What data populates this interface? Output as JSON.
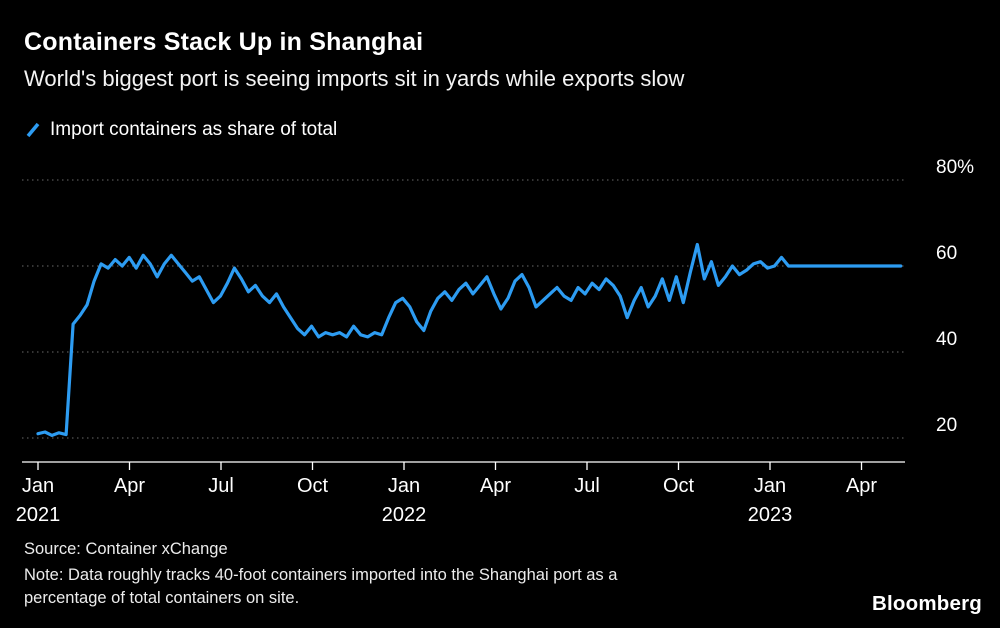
{
  "chart_data": {
    "type": "line",
    "title": "Containers Stack Up in Shanghai",
    "subtitle": "World's biggest port is seeing imports sit in yards while exports slow",
    "legend": "Import containers as share of total",
    "unit": "%",
    "x_start": "2021-01",
    "x_interval": "weekly",
    "ylim": [
      14,
      84
    ],
    "grid": "horizontal-dotted",
    "legend_position": "top-left",
    "y_axis_side": "right",
    "y_gridlines": [
      {
        "label": "80%",
        "value": 80
      },
      {
        "label": "60",
        "value": 60
      },
      {
        "label": "40",
        "value": 40
      },
      {
        "label": "20",
        "value": 20
      }
    ],
    "x_ticks": [
      {
        "label": "Jan",
        "year": "2021",
        "month": 0
      },
      {
        "label": "Apr",
        "month": 3
      },
      {
        "label": "Jul",
        "month": 6
      },
      {
        "label": "Oct",
        "month": 9
      },
      {
        "label": "Jan",
        "year": "2022",
        "month": 12
      },
      {
        "label": "Apr",
        "month": 15
      },
      {
        "label": "Jul",
        "month": 18
      },
      {
        "label": "Oct",
        "month": 21
      },
      {
        "label": "Jan",
        "year": "2023",
        "month": 24
      },
      {
        "label": "Apr",
        "month": 27
      }
    ],
    "values": [
      21,
      21.4,
      20.6,
      21.2,
      20.8,
      46.5,
      48.5,
      51,
      56.5,
      60.5,
      59.5,
      61.5,
      60,
      62,
      59.5,
      62.5,
      60.5,
      57.5,
      60.5,
      62.5,
      60.5,
      58.5,
      56.5,
      57.5,
      54.5,
      51.5,
      53,
      56,
      59.5,
      57,
      54,
      55.5,
      53,
      51.5,
      53.5,
      50.5,
      48,
      45.5,
      44,
      46,
      43.5,
      44.5,
      44,
      44.5,
      43.5,
      46,
      44,
      43.5,
      44.5,
      44,
      48,
      51.5,
      52.5,
      50.5,
      47,
      45,
      49.5,
      52.5,
      54,
      52,
      54.5,
      56,
      53.5,
      55.5,
      57.5,
      53.5,
      50,
      52.5,
      56.5,
      58,
      55,
      50.5,
      52,
      53.5,
      55,
      53,
      52,
      55,
      53.5,
      56,
      54.5,
      57,
      55.5,
      53,
      48,
      52,
      55,
      50.5,
      53,
      57,
      52,
      57.5,
      51.5,
      58.5,
      65,
      57,
      61,
      55.5,
      57.5,
      60,
      58,
      59,
      60.5,
      61,
      59.5,
      60,
      62,
      60,
      60,
      60,
      60,
      60,
      60,
      60,
      60,
      60,
      60,
      60,
      60,
      60,
      60,
      60,
      60,
      60
    ]
  },
  "footer": {
    "source": "Source: Container xChange",
    "note": "Note: Data roughly tracks 40-foot containers imported into the Shanghai port as a percentage of total containers on site.",
    "brand": "Bloomberg"
  },
  "colors": {
    "background": "#000000",
    "line": "#2D9CF2",
    "grid": "#6a6a6a",
    "axis": "#ffffff",
    "text": "#ffffff"
  }
}
